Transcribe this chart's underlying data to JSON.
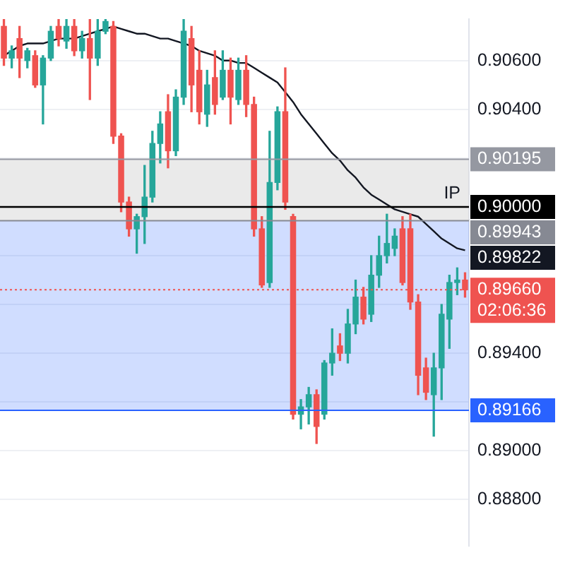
{
  "chart_data": {
    "type": "candlestick",
    "categories": [
      null,
      null,
      null,
      null,
      null,
      null,
      null,
      null,
      null,
      null,
      null,
      null,
      null,
      null,
      null,
      null,
      null,
      null,
      null,
      null,
      null,
      null,
      null,
      null,
      null,
      null,
      null,
      null,
      null,
      null,
      null,
      null,
      null,
      null,
      null,
      null,
      null,
      null,
      null,
      null,
      null,
      null,
      null,
      null,
      null,
      null,
      null,
      null,
      null,
      null,
      null,
      null,
      null,
      null,
      null,
      null,
      null,
      null,
      null,
      null
    ],
    "ohlc": [
      [
        0.9074,
        0.9077,
        0.9058,
        0.9061
      ],
      [
        0.9061,
        0.9066,
        0.9057,
        0.9064
      ],
      [
        0.9069,
        0.9074,
        0.9053,
        0.9061
      ],
      [
        0.906,
        0.9065,
        0.9057,
        0.9064
      ],
      [
        0.9062,
        0.9064,
        0.9049,
        0.905
      ],
      [
        0.905,
        0.9062,
        0.9034,
        0.9061
      ],
      [
        0.9061,
        0.9074,
        0.906,
        0.9072
      ],
      [
        0.9074,
        0.9077,
        0.9066,
        0.9069
      ],
      [
        0.9068,
        0.9077,
        0.9065,
        0.9074
      ],
      [
        0.9074,
        0.9077,
        0.9062,
        0.9064
      ],
      [
        0.9064,
        0.9072,
        0.9061,
        0.9069
      ],
      [
        0.9069,
        0.9077,
        0.9044,
        0.9061
      ],
      [
        0.9061,
        0.9077,
        0.9058,
        0.9072
      ],
      [
        0.9072,
        0.9077,
        0.9071,
        0.9076
      ],
      [
        0.9074,
        0.9076,
        0.9026,
        0.9029
      ],
      [
        0.9029,
        0.903,
        0.8998,
        0.9002
      ],
      [
        0.9002,
        0.9004,
        0.8988,
        0.8991
      ],
      [
        0.8991,
        0.8997,
        0.8981,
        0.8996
      ],
      [
        0.8996,
        0.9017,
        0.8985,
        0.9004
      ],
      [
        0.9004,
        0.9031,
        0.9002,
        0.9026
      ],
      [
        0.9026,
        0.9039,
        0.9018,
        0.9034
      ],
      [
        0.9039,
        0.9046,
        0.9016,
        0.9023
      ],
      [
        0.9023,
        0.9048,
        0.9021,
        0.9045
      ],
      [
        0.9045,
        0.9077,
        0.9042,
        0.9072
      ],
      [
        0.9069,
        0.9074,
        0.9039,
        0.905
      ],
      [
        0.9056,
        0.9064,
        0.9034,
        0.9039
      ],
      [
        0.9038,
        0.9056,
        0.9033,
        0.905
      ],
      [
        0.9053,
        0.9064,
        0.9038,
        0.9042
      ],
      [
        0.9045,
        0.9064,
        0.9044,
        0.9056
      ],
      [
        0.9056,
        0.9061,
        0.9034,
        0.9045
      ],
      [
        0.9044,
        0.9061,
        0.9042,
        0.9056
      ],
      [
        0.9056,
        0.9062,
        0.9037,
        0.9042
      ],
      [
        0.9042,
        0.9045,
        0.8988,
        0.8991
      ],
      [
        0.8991,
        0.8996,
        0.8967,
        0.8968
      ],
      [
        0.8969,
        0.9031,
        0.8967,
        0.901
      ],
      [
        0.901,
        0.9041,
        0.9007,
        0.9039
      ],
      [
        0.9039,
        0.9057,
        0.8999,
        0.9002
      ],
      [
        0.8996,
        0.8997,
        0.8913,
        0.8915
      ],
      [
        0.8915,
        0.8921,
        0.8909,
        0.8918
      ],
      [
        0.8918,
        0.8926,
        0.8911,
        0.8923
      ],
      [
        0.8923,
        0.8925,
        0.8903,
        0.891
      ],
      [
        0.8915,
        0.8937,
        0.8913,
        0.8936
      ],
      [
        0.8936,
        0.895,
        0.8931,
        0.894
      ],
      [
        0.8943,
        0.8948,
        0.8937,
        0.894
      ],
      [
        0.894,
        0.8958,
        0.8936,
        0.8952
      ],
      [
        0.8952,
        0.897,
        0.8948,
        0.8963
      ],
      [
        0.8963,
        0.8967,
        0.8952,
        0.8954
      ],
      [
        0.8956,
        0.898,
        0.8953,
        0.8972
      ],
      [
        0.8972,
        0.8988,
        0.8967,
        0.898
      ],
      [
        0.898,
        0.8997,
        0.8977,
        0.8985
      ],
      [
        0.8983,
        0.8991,
        0.898,
        0.8988
      ],
      [
        0.8991,
        0.8996,
        0.8968,
        0.8969
      ],
      [
        0.8991,
        0.8997,
        0.8958,
        0.8961
      ],
      [
        0.8961,
        0.8964,
        0.8923,
        0.8931
      ],
      [
        0.8934,
        0.8938,
        0.8921,
        0.8924
      ],
      [
        0.8923,
        0.894,
        0.8906,
        0.8934
      ],
      [
        0.8934,
        0.896,
        0.8921,
        0.8956
      ],
      [
        0.8954,
        0.8972,
        0.8942,
        0.8969
      ],
      [
        0.8969,
        0.8975,
        0.8964,
        0.897
      ],
      [
        0.897,
        0.8973,
        0.8963,
        0.8966
      ]
    ],
    "series": [
      {
        "type": "line",
        "color": "#131722",
        "values": [
          0.9062,
          0.9064,
          0.9066,
          0.9067,
          0.9067,
          0.9067,
          0.9068,
          0.9069,
          0.9069,
          0.9069,
          0.907,
          0.9071,
          0.9072,
          0.9073,
          0.9074,
          0.9073,
          0.9072,
          0.9071,
          0.9071,
          0.907,
          0.9069,
          0.9069,
          0.9068,
          0.9067,
          0.9066,
          0.9064,
          0.9063,
          0.9062,
          0.906,
          0.906,
          0.9059,
          0.9059,
          0.9057,
          0.9055,
          0.9053,
          0.9051,
          0.9047,
          0.9043,
          0.9038,
          0.9034,
          0.903,
          0.9026,
          0.9022,
          0.9019,
          0.9015,
          0.9012,
          0.9008,
          0.9005,
          0.9003,
          0.9001,
          0.8999,
          0.8998,
          0.8997,
          0.8996,
          0.8993,
          0.899,
          0.8987,
          0.8985,
          0.8983,
          0.89822
        ],
        "value_labels": [
          null,
          null,
          null,
          null,
          null,
          null,
          null,
          null,
          null,
          null,
          null,
          null,
          null,
          null,
          null,
          null,
          null,
          null,
          null,
          null,
          null,
          null,
          null,
          null,
          null,
          null,
          null,
          null,
          null,
          null,
          null,
          null,
          null,
          null,
          null,
          null,
          null,
          null,
          null,
          null,
          null,
          null,
          null,
          null,
          null,
          null,
          null,
          null,
          null,
          null,
          null,
          null,
          null,
          null,
          null,
          null,
          null,
          null,
          null,
          "0.89822"
        ]
      }
    ],
    "marker": "none",
    "ylim": [
      0.8861,
      0.9077
    ],
    "yticks": [
      {
        "value": 0.888,
        "label": "0.88800"
      },
      {
        "value": 0.89,
        "label": "0.89000"
      },
      {
        "value": 0.892,
        "label": null
      },
      {
        "value": 0.894,
        "label": "0.89400"
      },
      {
        "value": 0.896,
        "label": null
      },
      {
        "value": 0.898,
        "label": null
      },
      {
        "value": 0.9,
        "label": "0.90000"
      },
      {
        "value": 0.902,
        "label": null
      },
      {
        "value": 0.904,
        "label": "0.90400"
      },
      {
        "value": 0.906,
        "label": "0.90600"
      }
    ],
    "tick_labels": "y",
    "grid": "y",
    "bands": [
      {
        "axis": "y",
        "from": 0.89943,
        "to": 0.90195,
        "color": "#d9d9d9"
      },
      {
        "axis": "y",
        "from": 0.89166,
        "to": 0.89943,
        "color": "#2962ff"
      }
    ],
    "ref_lines": [
      {
        "axis": "y",
        "value": 0.9,
        "label": "IP",
        "line_style": "solid"
      },
      {
        "axis": "y",
        "value": 0.90195,
        "label": "0.90195",
        "color": "#9598a1",
        "line_style": "solid"
      },
      {
        "axis": "y",
        "value": 0.89943,
        "label": "0.89943",
        "color": "#868993",
        "line_style": "solid"
      },
      {
        "axis": "y",
        "value": 0.8966,
        "label": "0.89660",
        "color": "#ef5350",
        "line_style": "dotted"
      },
      {
        "axis": "y",
        "value": 0.89166,
        "label": "0.89166",
        "color": "#2962ff",
        "line_style": "solid"
      }
    ],
    "annotations": [
      "02:06:36"
    ]
  }
}
